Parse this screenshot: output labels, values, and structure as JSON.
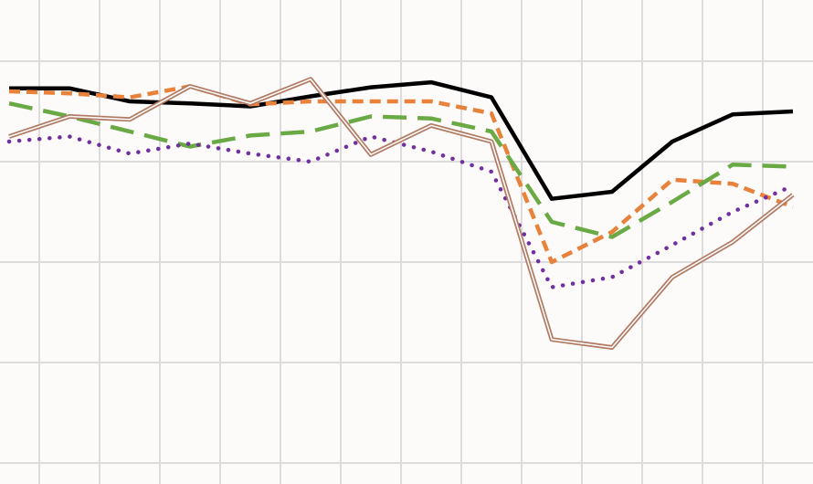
{
  "chart_data": {
    "type": "line",
    "title": "",
    "xlabel": "",
    "ylabel": "",
    "x": [
      0,
      1,
      2,
      3,
      4,
      5,
      6,
      7,
      8,
      9,
      10,
      11,
      12,
      13
    ],
    "xlim": [
      0,
      13.4
    ],
    "ylim": [
      0,
      4.8
    ],
    "grid": true,
    "legend": "none",
    "series": [
      {
        "color": "#000000",
        "style": "solid",
        "values": [
          3.73,
          3.73,
          3.6,
          3.58,
          3.55,
          3.65,
          3.74,
          3.79,
          3.64,
          2.63,
          2.7,
          3.2,
          3.47,
          3.5
        ]
      },
      {
        "color": "#e8823a",
        "style": "dashed",
        "values": [
          3.7,
          3.68,
          3.64,
          3.75,
          3.57,
          3.6,
          3.6,
          3.6,
          3.48,
          2.0,
          2.3,
          2.82,
          2.78,
          2.55
        ]
      },
      {
        "color": "#6aaa45",
        "style": "longdash",
        "values": [
          3.58,
          3.45,
          3.3,
          3.15,
          3.26,
          3.3,
          3.45,
          3.43,
          3.3,
          2.4,
          2.25,
          2.6,
          2.97,
          2.95
        ]
      },
      {
        "color": "#7030a0",
        "style": "dotted",
        "values": [
          3.2,
          3.25,
          3.08,
          3.18,
          3.08,
          3.0,
          3.25,
          3.1,
          2.9,
          1.75,
          1.85,
          2.17,
          2.5,
          2.76
        ]
      },
      {
        "color": "#b07a63",
        "style": "double",
        "values": [
          3.25,
          3.45,
          3.42,
          3.75,
          3.58,
          3.82,
          3.07,
          3.36,
          3.2,
          1.23,
          1.15,
          1.85,
          2.2,
          2.67
        ]
      }
    ]
  }
}
